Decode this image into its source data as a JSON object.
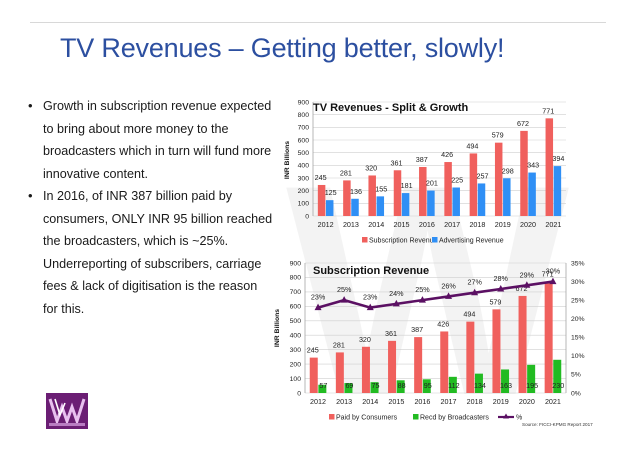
{
  "slide": {
    "title": "TV Revenues – Getting better, slowly!",
    "bullets": [
      "Growth in subscription revenue expected to bring about more money to the broadcasters which in turn will fund more innovative content.",
      "In 2016, of INR 387 billion paid by consumers, ONLY INR 95 billion reached the broadcasters, which is ~25%. Underreporting of subscribers, carriage fees & lack of digitisation is the reason for this."
    ],
    "source_note": "Source: FICCI-KPMG Report 2017"
  },
  "colors": {
    "title": "#2c4fa0",
    "subscription": "#f0605d",
    "advertising": "#2f8ff5",
    "broadcasters": "#22bb22",
    "percent_line": "#5b1063"
  },
  "chart_data": [
    {
      "type": "bar",
      "title": "TV Revenues - Split & Growth",
      "xlabel": "",
      "ylabel": "INR Billions",
      "ylim": [
        0,
        900
      ],
      "yticks": [
        0,
        100,
        200,
        300,
        400,
        500,
        600,
        700,
        800,
        900
      ],
      "categories": [
        "2012",
        "2013",
        "2014",
        "2015",
        "2016",
        "2017",
        "2018",
        "2019",
        "2020",
        "2021"
      ],
      "series": [
        {
          "name": "Subscription Revenue",
          "values": [
            245,
            281,
            320,
            361,
            387,
            426,
            494,
            579,
            672,
            771
          ]
        },
        {
          "name": "Advertising Revenue",
          "values": [
            125,
            136,
            155,
            181,
            201,
            225,
            257,
            298,
            343,
            394
          ]
        }
      ],
      "legend": "bottom"
    },
    {
      "type": "bar",
      "title": "Subscription Revenue",
      "xlabel": "",
      "ylabel": "INR Billions",
      "ylim": [
        0,
        900
      ],
      "yticks": [
        0,
        100,
        200,
        300,
        400,
        500,
        600,
        700,
        800,
        900
      ],
      "y2lim": [
        0,
        35
      ],
      "y2ticks": [
        "0%",
        "5%",
        "10%",
        "15%",
        "20%",
        "25%",
        "30%",
        "35%"
      ],
      "categories": [
        "2012",
        "2013",
        "2014",
        "2015",
        "2016",
        "2017",
        "2018",
        "2019",
        "2020",
        "2021"
      ],
      "series": [
        {
          "name": "Paid by Consumers",
          "values": [
            245,
            281,
            320,
            361,
            387,
            426,
            494,
            579,
            672,
            771
          ]
        },
        {
          "name": "Recd by Broadcasters",
          "values": [
            57,
            69,
            75,
            88,
            95,
            112,
            134,
            163,
            195,
            230
          ]
        },
        {
          "name": "%",
          "kind": "line",
          "values": [
            23,
            25,
            23,
            24,
            25,
            26,
            27,
            28,
            29,
            30
          ]
        }
      ],
      "legend": "bottom"
    }
  ]
}
